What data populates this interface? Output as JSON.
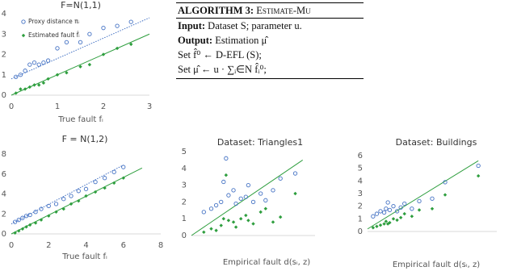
{
  "algorithm": {
    "label": "ALGORITHM 3:",
    "name": "Estimate-Mu",
    "input": {
      "label": "Input:",
      "text": "Dataset S; parameter u."
    },
    "output": {
      "label": "Output:",
      "text": "Estimation μ̂"
    },
    "steps": [
      "Set f̂⁰ ← D-EFL (S);",
      "Set μ̂ ← u · ∑ᵢ∈N f̂ᵢ⁰;"
    ]
  },
  "chart_data": [
    {
      "type": "scatter",
      "title": "F=N(1,1)",
      "x_label": "True fault fᵢ",
      "xlim": [
        0,
        3
      ],
      "xticks": [
        0,
        1,
        2,
        3
      ],
      "ylim": [
        0,
        4
      ],
      "yticks": [
        0,
        1,
        2,
        3,
        4
      ],
      "legend": "upper left",
      "x": [
        0.1,
        0.2,
        0.3,
        0.4,
        0.5,
        0.6,
        0.7,
        0.8,
        1.0,
        1.2,
        1.5,
        1.7,
        2.0,
        2.3,
        2.6
      ],
      "series": [
        {
          "name": "Proxy distance πᵢ",
          "color": "#4472c4",
          "marker": "circle",
          "values": [
            0.9,
            1.0,
            1.2,
            1.5,
            1.6,
            1.5,
            1.6,
            1.7,
            2.3,
            2.6,
            2.6,
            3.0,
            3.3,
            3.4,
            3.6
          ]
        },
        {
          "name": "Estimated fault f̂ᵢ",
          "color": "#2e9e3e",
          "marker": "diamond",
          "values": [
            0.1,
            0.3,
            0.3,
            0.4,
            0.5,
            0.5,
            0.6,
            0.8,
            1.0,
            1.1,
            1.4,
            1.5,
            2.0,
            2.3,
            2.5
          ]
        }
      ],
      "trendlines": [
        {
          "color": "#2e9e3e",
          "dashed": false,
          "x": [
            0,
            3
          ],
          "y": [
            0,
            3
          ]
        },
        {
          "color": "#4472c4",
          "dashed": true,
          "x": [
            0,
            3
          ],
          "y": [
            0.8,
            3.8
          ]
        }
      ]
    },
    {
      "type": "scatter",
      "title": "F = N(1,2)",
      "x_label": "True fault fᵢ",
      "xlim": [
        0,
        8
      ],
      "xticks": [
        0,
        2,
        4,
        6,
        8
      ],
      "ylim": [
        0,
        8
      ],
      "yticks": [
        0,
        2,
        4,
        6,
        8
      ],
      "x": [
        0.2,
        0.4,
        0.6,
        0.8,
        1,
        1.3,
        1.6,
        2,
        2.4,
        2.8,
        3.2,
        3.6,
        4,
        4.5,
        5,
        5.5,
        6
      ],
      "series": [
        {
          "color": "#4472c4",
          "marker": "circle",
          "values": [
            1.2,
            1.4,
            1.6,
            1.8,
            1.9,
            2.2,
            2.5,
            2.8,
            3.0,
            3.5,
            3.8,
            4.3,
            4.5,
            5.2,
            5.6,
            6.2,
            6.7
          ]
        },
        {
          "color": "#2e9e3e",
          "marker": "diamond",
          "values": [
            0.1,
            0.3,
            0.5,
            0.7,
            0.9,
            1.1,
            1.4,
            1.8,
            2.2,
            2.5,
            3.0,
            3.3,
            3.8,
            4.2,
            4.6,
            5.1,
            5.6
          ]
        }
      ],
      "trendlines": [
        {
          "color": "#2e9e3e",
          "dashed": false,
          "x": [
            0,
            7
          ],
          "y": [
            0,
            6.6
          ]
        },
        {
          "color": "#4472c4",
          "dashed": true,
          "x": [
            0,
            6
          ],
          "y": [
            1,
            6.9
          ]
        }
      ]
    },
    {
      "type": "scatter",
      "title": "Dataset: Triangles1",
      "x_label": "Empirical fault d(sᵢ, z)",
      "xlim": [
        0,
        5
      ],
      "ylim": [
        0,
        5
      ],
      "yticks": [
        0,
        1,
        2,
        3,
        4,
        5
      ],
      "x": [
        0.5,
        0.8,
        1.0,
        1.2,
        1.3,
        1.5,
        1.7,
        1.8,
        2.0,
        2.2,
        2.5,
        2.8,
        3.0,
        3.3,
        3.6,
        4.2,
        1.4,
        2.3
      ],
      "series": [
        {
          "color": "#4472c4",
          "marker": "circle",
          "values": [
            1.4,
            1.6,
            1.8,
            2.0,
            3.2,
            2.4,
            2.7,
            1.9,
            2.2,
            2.3,
            2.0,
            2.5,
            2.1,
            2.7,
            3.4,
            3.7,
            4.6,
            3.0
          ]
        },
        {
          "color": "#2e9e3e",
          "marker": "diamond",
          "values": [
            0.2,
            0.4,
            0.3,
            0.6,
            1.0,
            0.9,
            0.8,
            0.5,
            1.0,
            1.2,
            0.7,
            1.4,
            1.6,
            0.8,
            1.1,
            2.5,
            3.6,
            0.9
          ]
        }
      ],
      "trendlines": [
        {
          "color": "#2e9e3e",
          "dashed": false,
          "x": [
            0,
            4.5
          ],
          "y": [
            0,
            4.5
          ]
        }
      ]
    },
    {
      "type": "scatter",
      "title": "Dataset: Buildings",
      "x_label": "Empirical fault d(sᵢ, z)",
      "xlim": [
        0,
        7
      ],
      "ylim": [
        0,
        6
      ],
      "yticks": [
        0,
        1,
        2,
        3,
        4,
        5,
        6
      ],
      "x": [
        0.3,
        0.5,
        0.7,
        0.9,
        1.0,
        1.2,
        1.4,
        1.6,
        1.8,
        2.0,
        2.4,
        2.8,
        3.5,
        4.2,
        6.0,
        1.1
      ],
      "series": [
        {
          "color": "#4472c4",
          "marker": "circle",
          "values": [
            1.2,
            1.4,
            1.6,
            1.5,
            1.8,
            1.7,
            2.0,
            1.6,
            1.9,
            2.2,
            1.8,
            2.4,
            2.6,
            3.9,
            5.2,
            2.3
          ]
        },
        {
          "color": "#2e9e3e",
          "marker": "diamond",
          "values": [
            0.3,
            0.4,
            0.5,
            0.6,
            0.8,
            0.7,
            1.0,
            0.9,
            1.1,
            1.4,
            1.2,
            1.7,
            1.8,
            2.9,
            4.4,
            0.6
          ]
        }
      ],
      "trendlines": [
        {
          "color": "#2e9e3e",
          "dashed": false,
          "x": [
            0,
            6
          ],
          "y": [
            0.2,
            5.6
          ]
        }
      ]
    }
  ]
}
